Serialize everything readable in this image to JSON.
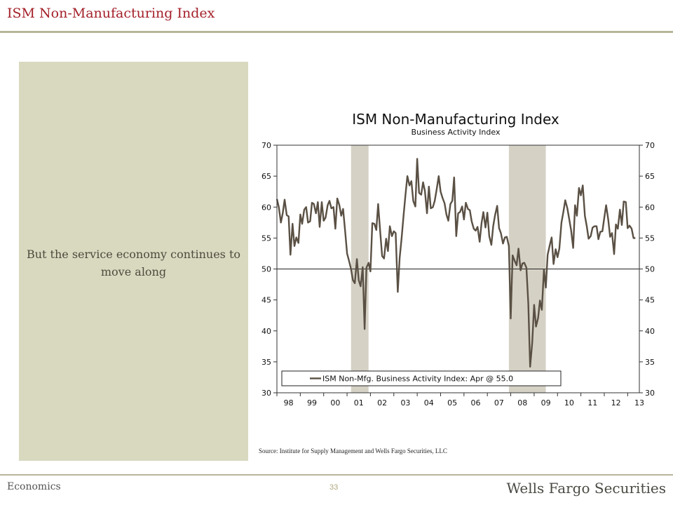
{
  "slide": {
    "title": "ISM Non-Manufacturing Index",
    "side_text": "But the service economy continues to move along",
    "source": "Source:  Institute for Supply Management and Wells Fargo Securities, LLC",
    "footer_left": "Economics",
    "page_number": "33",
    "brand": "Wells Fargo Securities"
  },
  "colors": {
    "title": "#a4202a",
    "panel": "#d8d9bf",
    "line": "#5a5044",
    "recession": "#d5d2c5"
  },
  "chart_data": {
    "type": "line",
    "title": "ISM Non-Manufacturing Index",
    "subtitle": "Business Activity Index",
    "ylim": [
      30,
      70
    ],
    "yticks": [
      30,
      35,
      40,
      45,
      50,
      55,
      60,
      65,
      70
    ],
    "xlim": [
      1998.0,
      2013.5
    ],
    "xtick_labels": [
      "98",
      "99",
      "00",
      "01",
      "02",
      "03",
      "04",
      "05",
      "06",
      "07",
      "08",
      "09",
      "10",
      "11",
      "12",
      "13"
    ],
    "reference_line": 50,
    "legend": "ISM Non-Mfg. Business Activity Index: Apr @ 55.0",
    "legend_position": "bottom",
    "recessions": [
      [
        2001.17,
        2001.92
      ],
      [
        2007.92,
        2009.5
      ]
    ],
    "series": [
      {
        "name": "ISM Non-Mfg. Business Activity Index: Apr @ 55.0",
        "points": [
          [
            1998.0,
            61.3
          ],
          [
            1998.08,
            60.0
          ],
          [
            1998.17,
            57.5
          ],
          [
            1998.25,
            59.0
          ],
          [
            1998.33,
            61.2
          ],
          [
            1998.42,
            58.7
          ],
          [
            1998.5,
            58.5
          ],
          [
            1998.58,
            52.3
          ],
          [
            1998.67,
            57.3
          ],
          [
            1998.75,
            53.7
          ],
          [
            1998.83,
            55.1
          ],
          [
            1998.92,
            54.2
          ],
          [
            1999.0,
            58.8
          ],
          [
            1999.08,
            57.3
          ],
          [
            1999.17,
            59.6
          ],
          [
            1999.25,
            60.0
          ],
          [
            1999.33,
            57.5
          ],
          [
            1999.42,
            57.7
          ],
          [
            1999.5,
            60.7
          ],
          [
            1999.58,
            60.5
          ],
          [
            1999.67,
            59.0
          ],
          [
            1999.75,
            60.8
          ],
          [
            1999.83,
            56.8
          ],
          [
            1999.92,
            60.8
          ],
          [
            2000.0,
            57.8
          ],
          [
            2000.08,
            58.3
          ],
          [
            2000.17,
            60.3
          ],
          [
            2000.25,
            61.0
          ],
          [
            2000.33,
            59.8
          ],
          [
            2000.42,
            60.0
          ],
          [
            2000.5,
            56.5
          ],
          [
            2000.58,
            61.4
          ],
          [
            2000.67,
            60.3
          ],
          [
            2000.75,
            58.6
          ],
          [
            2000.83,
            59.7
          ],
          [
            2000.92,
            56.0
          ],
          [
            2001.0,
            52.5
          ],
          [
            2001.08,
            51.4
          ],
          [
            2001.17,
            50.0
          ],
          [
            2001.25,
            48.2
          ],
          [
            2001.33,
            47.7
          ],
          [
            2001.42,
            51.6
          ],
          [
            2001.5,
            48.2
          ],
          [
            2001.58,
            47.2
          ],
          [
            2001.67,
            50.3
          ],
          [
            2001.75,
            40.3
          ],
          [
            2001.83,
            50.2
          ],
          [
            2001.92,
            51.0
          ],
          [
            2002.0,
            49.6
          ],
          [
            2002.08,
            57.4
          ],
          [
            2002.17,
            57.3
          ],
          [
            2002.25,
            56.3
          ],
          [
            2002.33,
            60.5
          ],
          [
            2002.42,
            55.9
          ],
          [
            2002.5,
            52.1
          ],
          [
            2002.58,
            51.7
          ],
          [
            2002.67,
            54.9
          ],
          [
            2002.75,
            52.9
          ],
          [
            2002.83,
            56.9
          ],
          [
            2002.92,
            55.3
          ],
          [
            2003.0,
            56.1
          ],
          [
            2003.08,
            55.8
          ],
          [
            2003.17,
            46.3
          ],
          [
            2003.25,
            51.8
          ],
          [
            2003.33,
            54.9
          ],
          [
            2003.42,
            58.8
          ],
          [
            2003.5,
            62.1
          ],
          [
            2003.58,
            65.0
          ],
          [
            2003.67,
            63.5
          ],
          [
            2003.75,
            64.2
          ],
          [
            2003.83,
            61.0
          ],
          [
            2003.92,
            60.1
          ],
          [
            2004.0,
            67.8
          ],
          [
            2004.08,
            62.3
          ],
          [
            2004.17,
            62.0
          ],
          [
            2004.25,
            64.0
          ],
          [
            2004.33,
            62.6
          ],
          [
            2004.42,
            59.0
          ],
          [
            2004.5,
            63.3
          ],
          [
            2004.58,
            59.8
          ],
          [
            2004.67,
            60.0
          ],
          [
            2004.75,
            61.0
          ],
          [
            2004.83,
            62.8
          ],
          [
            2004.92,
            65.0
          ],
          [
            2005.0,
            62.5
          ],
          [
            2005.08,
            61.5
          ],
          [
            2005.17,
            60.6
          ],
          [
            2005.25,
            58.8
          ],
          [
            2005.33,
            57.8
          ],
          [
            2005.42,
            60.5
          ],
          [
            2005.5,
            61.0
          ],
          [
            2005.58,
            64.8
          ],
          [
            2005.67,
            55.3
          ],
          [
            2005.75,
            59.0
          ],
          [
            2005.83,
            59.2
          ],
          [
            2005.92,
            60.1
          ],
          [
            2006.0,
            58.0
          ],
          [
            2006.08,
            60.7
          ],
          [
            2006.17,
            59.7
          ],
          [
            2006.25,
            59.5
          ],
          [
            2006.33,
            57.7
          ],
          [
            2006.42,
            56.5
          ],
          [
            2006.5,
            56.2
          ],
          [
            2006.58,
            56.8
          ],
          [
            2006.67,
            54.4
          ],
          [
            2006.75,
            57.4
          ],
          [
            2006.83,
            59.2
          ],
          [
            2006.92,
            56.7
          ],
          [
            2007.0,
            59.1
          ],
          [
            2007.08,
            55.3
          ],
          [
            2007.17,
            53.9
          ],
          [
            2007.25,
            56.9
          ],
          [
            2007.33,
            58.7
          ],
          [
            2007.42,
            60.2
          ],
          [
            2007.5,
            56.6
          ],
          [
            2007.58,
            55.8
          ],
          [
            2007.67,
            54.1
          ],
          [
            2007.75,
            55.1
          ],
          [
            2007.83,
            55.2
          ],
          [
            2007.92,
            53.7
          ],
          [
            2008.0,
            42.0
          ],
          [
            2008.08,
            52.2
          ],
          [
            2008.17,
            51.3
          ],
          [
            2008.25,
            50.6
          ],
          [
            2008.33,
            53.3
          ],
          [
            2008.42,
            49.8
          ],
          [
            2008.5,
            50.9
          ],
          [
            2008.58,
            51.0
          ],
          [
            2008.67,
            50.2
          ],
          [
            2008.75,
            44.4
          ],
          [
            2008.83,
            34.2
          ],
          [
            2008.92,
            38.1
          ],
          [
            2009.0,
            44.2
          ],
          [
            2009.08,
            40.7
          ],
          [
            2009.17,
            42.1
          ],
          [
            2009.25,
            44.9
          ],
          [
            2009.33,
            43.4
          ],
          [
            2009.42,
            49.9
          ],
          [
            2009.5,
            47.0
          ],
          [
            2009.58,
            52.3
          ],
          [
            2009.67,
            53.9
          ],
          [
            2009.75,
            55.1
          ],
          [
            2009.83,
            50.8
          ],
          [
            2009.92,
            53.2
          ],
          [
            2010.0,
            51.9
          ],
          [
            2010.08,
            53.3
          ],
          [
            2010.17,
            57.5
          ],
          [
            2010.25,
            59.2
          ],
          [
            2010.33,
            61.1
          ],
          [
            2010.42,
            59.8
          ],
          [
            2010.5,
            58.1
          ],
          [
            2010.58,
            56.3
          ],
          [
            2010.67,
            53.4
          ],
          [
            2010.75,
            60.3
          ],
          [
            2010.83,
            58.6
          ],
          [
            2010.92,
            63.1
          ],
          [
            2011.0,
            61.9
          ],
          [
            2011.08,
            63.5
          ],
          [
            2011.17,
            58.6
          ],
          [
            2011.25,
            56.9
          ],
          [
            2011.33,
            54.9
          ],
          [
            2011.42,
            55.3
          ],
          [
            2011.5,
            56.7
          ],
          [
            2011.58,
            56.9
          ],
          [
            2011.67,
            56.9
          ],
          [
            2011.75,
            54.8
          ],
          [
            2011.83,
            56.0
          ],
          [
            2011.92,
            56.1
          ],
          [
            2012.0,
            58.3
          ],
          [
            2012.08,
            60.3
          ],
          [
            2012.17,
            58.0
          ],
          [
            2012.25,
            55.2
          ],
          [
            2012.33,
            55.8
          ],
          [
            2012.42,
            52.4
          ],
          [
            2012.5,
            57.2
          ],
          [
            2012.58,
            56.5
          ],
          [
            2012.67,
            59.6
          ],
          [
            2012.75,
            57.1
          ],
          [
            2012.83,
            60.9
          ],
          [
            2012.92,
            60.8
          ],
          [
            2013.0,
            56.6
          ],
          [
            2013.08,
            57.0
          ],
          [
            2013.17,
            56.5
          ],
          [
            2013.25,
            55.0
          ],
          [
            2013.33,
            55.0
          ]
        ]
      }
    ]
  }
}
